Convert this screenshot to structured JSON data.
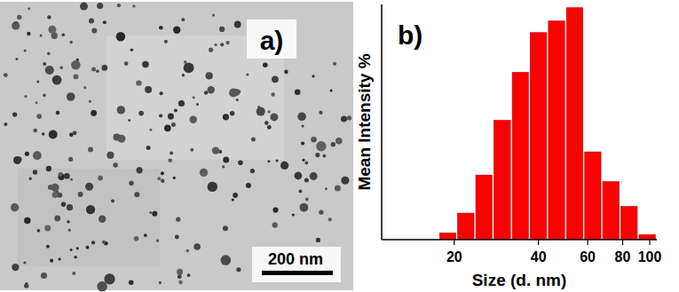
{
  "chart_data": {
    "type": "histogram",
    "title": "b)",
    "x_label": "Size (d. nm)",
    "y_label": "Mean Intensity %",
    "bins": [
      17.6,
      20.4,
      23.7,
      27.5,
      32.0,
      37.1,
      43.1,
      50.0,
      58.1,
      67.4,
      78.3,
      90.9,
      105.5
    ],
    "values": [
      0.4,
      1.6,
      3.9,
      7.2,
      10.1,
      12.5,
      13.2,
      14.0,
      5.3,
      3.5,
      2.0,
      0.3
    ],
    "color": "#ff0000",
    "xlim": [
      11,
      106
    ],
    "xticks": [
      20,
      40,
      60,
      80,
      100
    ],
    "ylim": [
      0,
      14.2
    ],
    "log": "x",
    "tick_labels": "x"
  },
  "micrograph": {
    "label": "a)",
    "scale_bar": "200 nm"
  }
}
